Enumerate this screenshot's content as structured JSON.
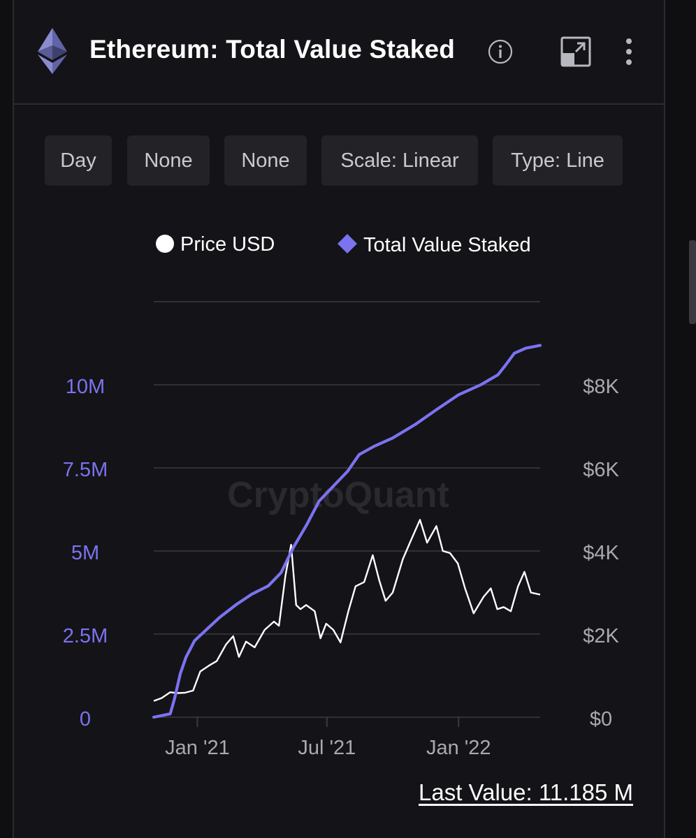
{
  "header": {
    "title": "Ethereum: Total Value Staked",
    "icons": [
      "ethereum-logo-icon",
      "info-icon",
      "expand-icon",
      "more-vertical-icon"
    ]
  },
  "controls": {
    "interval": "Day",
    "option_1": "None",
    "option_2": "None",
    "scale": "Scale: Linear",
    "type": "Type: Line"
  },
  "legend": {
    "price": "Price USD",
    "staked": "Total Value Staked"
  },
  "watermark": "CryptoQuant",
  "footer": {
    "last_value": "Last Value: 11.185 M"
  },
  "colors": {
    "background": "#141317",
    "staked_line": "#7b73f0",
    "price_line": "#ffffff",
    "grid": "#3a3a42",
    "left_axis_text": "#7b73f0",
    "right_axis_text": "#a9a9b0"
  },
  "chart_data": {
    "type": "line",
    "x_range": [
      "2020-11-01",
      "2022-04-25"
    ],
    "x_ticks": [
      {
        "label": "Jan '21",
        "date": "2021-01-01"
      },
      {
        "label": "Jul '21",
        "date": "2021-07-01"
      },
      {
        "label": "Jan '22",
        "date": "2022-01-01"
      }
    ],
    "y_left": {
      "range": [
        0,
        12.5
      ],
      "ticks": [
        {
          "value": 0,
          "label": "0"
        },
        {
          "value": 2.5,
          "label": "2.5M"
        },
        {
          "value": 5,
          "label": "5M"
        },
        {
          "value": 7.5,
          "label": "7.5M"
        },
        {
          "value": 10,
          "label": "10M"
        }
      ]
    },
    "y_right": {
      "range": [
        0,
        10000
      ],
      "ticks": [
        {
          "value": 0,
          "label": "$0"
        },
        {
          "value": 2000,
          "label": "$2K"
        },
        {
          "value": 4000,
          "label": "$4K"
        },
        {
          "value": 6000,
          "label": "$6K"
        },
        {
          "value": 8000,
          "label": "$8K"
        }
      ]
    },
    "grid": true,
    "legend_position": "top",
    "series": [
      {
        "name": "Total Value Staked",
        "axis": "left",
        "unit": "M",
        "points": [
          [
            "2020-11-01",
            0.0
          ],
          [
            "2020-11-24",
            0.1
          ],
          [
            "2020-11-30",
            0.55
          ],
          [
            "2020-12-08",
            1.3
          ],
          [
            "2020-12-16",
            1.8
          ],
          [
            "2020-12-28",
            2.3
          ],
          [
            "2021-01-12",
            2.6
          ],
          [
            "2021-02-01",
            3.0
          ],
          [
            "2021-02-25",
            3.4
          ],
          [
            "2021-03-18",
            3.7
          ],
          [
            "2021-04-10",
            3.95
          ],
          [
            "2021-04-28",
            4.35
          ],
          [
            "2021-05-15",
            5.1
          ],
          [
            "2021-06-03",
            5.8
          ],
          [
            "2021-06-20",
            6.5
          ],
          [
            "2021-07-10",
            6.95
          ],
          [
            "2021-07-30",
            7.4
          ],
          [
            "2021-08-15",
            7.9
          ],
          [
            "2021-09-05",
            8.15
          ],
          [
            "2021-10-01",
            8.4
          ],
          [
            "2021-11-01",
            8.8
          ],
          [
            "2021-12-01",
            9.25
          ],
          [
            "2022-01-01",
            9.7
          ],
          [
            "2022-02-01",
            10.0
          ],
          [
            "2022-02-25",
            10.3
          ],
          [
            "2022-03-08",
            10.6
          ],
          [
            "2022-03-20",
            10.95
          ],
          [
            "2022-04-05",
            11.1
          ],
          [
            "2022-04-25",
            11.185
          ]
        ]
      },
      {
        "name": "Price USD",
        "axis": "right",
        "unit": "USD",
        "points": [
          [
            "2020-11-01",
            390
          ],
          [
            "2020-11-12",
            460
          ],
          [
            "2020-11-24",
            600
          ],
          [
            "2020-12-04",
            580
          ],
          [
            "2020-12-15",
            590
          ],
          [
            "2020-12-26",
            640
          ],
          [
            "2021-01-05",
            1100
          ],
          [
            "2021-01-18",
            1250
          ],
          [
            "2021-01-28",
            1350
          ],
          [
            "2021-02-10",
            1750
          ],
          [
            "2021-02-20",
            1950
          ],
          [
            "2021-02-28",
            1450
          ],
          [
            "2021-03-10",
            1820
          ],
          [
            "2021-03-22",
            1680
          ],
          [
            "2021-04-05",
            2100
          ],
          [
            "2021-04-18",
            2300
          ],
          [
            "2021-04-25",
            2200
          ],
          [
            "2021-05-04",
            3400
          ],
          [
            "2021-05-12",
            4150
          ],
          [
            "2021-05-19",
            2700
          ],
          [
            "2021-05-25",
            2600
          ],
          [
            "2021-06-02",
            2700
          ],
          [
            "2021-06-14",
            2550
          ],
          [
            "2021-06-22",
            1900
          ],
          [
            "2021-06-30",
            2250
          ],
          [
            "2021-07-10",
            2100
          ],
          [
            "2021-07-20",
            1800
          ],
          [
            "2021-07-31",
            2550
          ],
          [
            "2021-08-10",
            3150
          ],
          [
            "2021-08-22",
            3250
          ],
          [
            "2021-09-03",
            3900
          ],
          [
            "2021-09-12",
            3300
          ],
          [
            "2021-09-21",
            2800
          ],
          [
            "2021-10-01",
            3000
          ],
          [
            "2021-10-15",
            3800
          ],
          [
            "2021-10-25",
            4200
          ],
          [
            "2021-11-08",
            4750
          ],
          [
            "2021-11-18",
            4200
          ],
          [
            "2021-12-01",
            4600
          ],
          [
            "2021-12-10",
            4000
          ],
          [
            "2021-12-20",
            3950
          ],
          [
            "2021-12-31",
            3700
          ],
          [
            "2022-01-10",
            3100
          ],
          [
            "2022-01-22",
            2500
          ],
          [
            "2022-02-05",
            2900
          ],
          [
            "2022-02-15",
            3100
          ],
          [
            "2022-02-24",
            2600
          ],
          [
            "2022-03-05",
            2650
          ],
          [
            "2022-03-15",
            2550
          ],
          [
            "2022-03-25",
            3150
          ],
          [
            "2022-04-03",
            3500
          ],
          [
            "2022-04-12",
            3000
          ],
          [
            "2022-04-25",
            2950
          ]
        ]
      }
    ]
  }
}
